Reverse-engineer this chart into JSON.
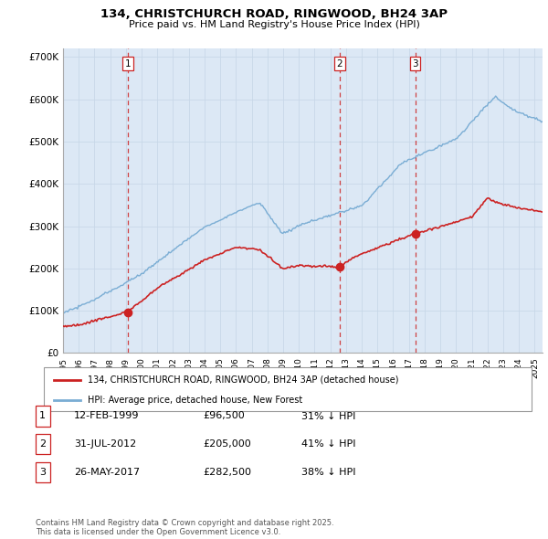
{
  "title_line1": "134, CHRISTCHURCH ROAD, RINGWOOD, BH24 3AP",
  "title_line2": "Price paid vs. HM Land Registry's House Price Index (HPI)",
  "ylim": [
    0,
    720000
  ],
  "yticks": [
    0,
    100000,
    200000,
    300000,
    400000,
    500000,
    600000,
    700000
  ],
  "ytick_labels": [
    "£0",
    "£100K",
    "£200K",
    "£300K",
    "£400K",
    "£500K",
    "£600K",
    "£700K"
  ],
  "hpi_color": "#7aadd4",
  "price_color": "#cc2222",
  "vline_color": "#cc2222",
  "grid_color": "#c8d8e8",
  "bg_fill": "#dce8f5",
  "background_color": "#ffffff",
  "legend_label_red": "134, CHRISTCHURCH ROAD, RINGWOOD, BH24 3AP (detached house)",
  "legend_label_blue": "HPI: Average price, detached house, New Forest",
  "transaction1_date": "12-FEB-1999",
  "transaction1_price": "£96,500",
  "transaction1_pct": "31% ↓ HPI",
  "transaction2_date": "31-JUL-2012",
  "transaction2_price": "£205,000",
  "transaction2_pct": "41% ↓ HPI",
  "transaction3_date": "26-MAY-2017",
  "transaction3_price": "£282,500",
  "transaction3_pct": "38% ↓ HPI",
  "footnote": "Contains HM Land Registry data © Crown copyright and database right 2025.\nThis data is licensed under the Open Government Licence v3.0."
}
